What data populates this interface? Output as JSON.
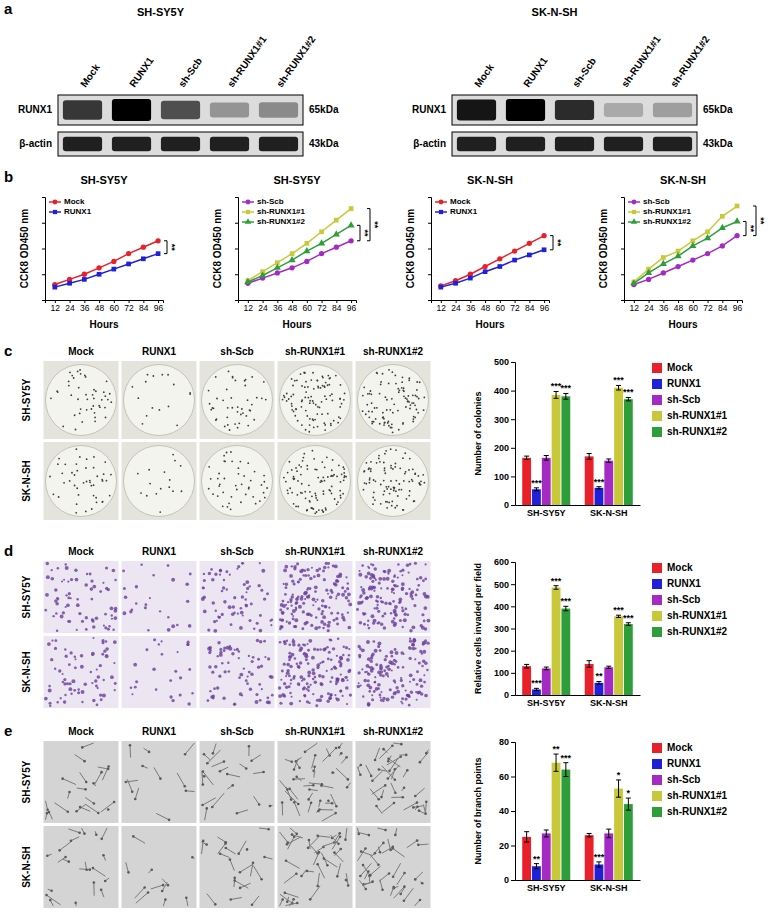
{
  "panel_labels": [
    "a",
    "b",
    "c",
    "d",
    "e"
  ],
  "blots": [
    {
      "title": "SH-SY5Y",
      "lanes": [
        "Mock",
        "RUNX1",
        "sh-Scb",
        "sh-RUNX1#1",
        "sh-RUNX1#2"
      ],
      "rows": [
        {
          "label": "RUNX1",
          "size": "65kDa",
          "intensity": [
            0.75,
            1.0,
            0.65,
            0.3,
            0.35
          ]
        },
        {
          "label": "β-actin",
          "size": "43kDa",
          "intensity": [
            0.85,
            0.85,
            0.85,
            0.85,
            0.85
          ]
        }
      ]
    },
    {
      "title": "SK-N-SH",
      "lanes": [
        "Mock",
        "RUNX1",
        "sh-Scb",
        "sh-RUNX1#1",
        "sh-RUNX1#2"
      ],
      "rows": [
        {
          "label": "RUNX1",
          "size": "65kDa",
          "intensity": [
            0.9,
            1.0,
            0.8,
            0.2,
            0.25
          ]
        },
        {
          "label": "β-actin",
          "size": "43kDa",
          "intensity": [
            0.85,
            0.85,
            0.85,
            0.85,
            0.85
          ]
        }
      ]
    }
  ],
  "image_panels": [
    {
      "columns": [
        "Mock",
        "RUNX1",
        "sh-Scb",
        "sh-RUNX1#1",
        "sh-RUNX1#2"
      ],
      "rows": [
        "SH-SY5Y",
        "SK-N-SH"
      ]
    },
    {
      "columns": [
        "Mock",
        "RUNX1",
        "sh-Scb",
        "sh-RUNX1#1",
        "sh-RUNX1#2"
      ],
      "rows": [
        "SH-SY5Y",
        "SK-N-SH"
      ]
    },
    {
      "columns": [
        "Mock",
        "RUNX1",
        "sh-Scb",
        "sh-RUNX1#1",
        "sh-RUNX1#2"
      ],
      "rows": [
        "SH-SY5Y",
        "SK-N-SH"
      ]
    }
  ],
  "chart_data": [
    {
      "type": "line",
      "title": "SH-SY5Y",
      "x_label": "Hours",
      "y_label": "CCK8 OD450 nm",
      "x": [
        12,
        24,
        36,
        48,
        60,
        72,
        84,
        96
      ],
      "xlim": [
        4,
        100
      ],
      "xticks": [
        12,
        24,
        36,
        48,
        60,
        72,
        84,
        96
      ],
      "ylim": [
        0,
        8
      ],
      "yticks": [
        0,
        2,
        4,
        6,
        8
      ],
      "tick_labels": "x",
      "series": [
        {
          "name": "Mock",
          "color": "#e8202a",
          "marker": "circle",
          "values": [
            1.2,
            1.6,
            2.0,
            2.5,
            3.0,
            3.6,
            4.1,
            4.6
          ]
        },
        {
          "name": "RUNX1",
          "color": "#2020d8",
          "marker": "square",
          "values": [
            1.0,
            1.3,
            1.6,
            2.0,
            2.4,
            2.8,
            3.2,
            3.6
          ]
        }
      ],
      "comparisons": [
        {
          "between": [
            "Mock",
            "RUNX1"
          ],
          "label": "**"
        }
      ]
    },
    {
      "type": "line",
      "title": "SH-SY5Y",
      "x_label": "Hours",
      "y_label": "CCK8 OD450 nm",
      "x": [
        12,
        24,
        36,
        48,
        60,
        72,
        84,
        96
      ],
      "xlim": [
        4,
        100
      ],
      "xticks": [
        12,
        24,
        36,
        48,
        60,
        72,
        84,
        96
      ],
      "ylim": [
        0,
        8
      ],
      "yticks": [
        0,
        2,
        4,
        6,
        8
      ],
      "tick_labels": "x",
      "series": [
        {
          "name": "sh-Scb",
          "color": "#a52ac4",
          "marker": "circle",
          "values": [
            1.3,
            1.7,
            2.1,
            2.5,
            3.0,
            3.6,
            4.1,
            4.6
          ]
        },
        {
          "name": "sh-RUNX1#1",
          "color": "#c8c83a",
          "marker": "square",
          "values": [
            1.5,
            2.2,
            2.9,
            3.6,
            4.4,
            5.3,
            6.2,
            7.1
          ]
        },
        {
          "name": "sh-RUNX1#2",
          "color": "#2e9e3a",
          "marker": "triangle",
          "values": [
            1.4,
            1.9,
            2.5,
            3.1,
            3.8,
            4.4,
            5.1,
            5.8
          ]
        }
      ],
      "comparisons": [
        {
          "between": [
            "sh-Scb",
            "sh-RUNX1#2"
          ],
          "label": "**"
        },
        {
          "between": [
            "sh-Scb",
            "sh-RUNX1#1"
          ],
          "label": "**"
        }
      ]
    },
    {
      "type": "line",
      "title": "SK-N-SH",
      "x_label": "Hours",
      "y_label": "CCK8 OD450 nm",
      "x": [
        12,
        24,
        36,
        48,
        60,
        72,
        84,
        96
      ],
      "xlim": [
        4,
        100
      ],
      "xticks": [
        12,
        24,
        36,
        48,
        60,
        72,
        84,
        96
      ],
      "ylim": [
        0,
        8
      ],
      "yticks": [
        0,
        2,
        4,
        6,
        8
      ],
      "tick_labels": "x",
      "series": [
        {
          "name": "Mock",
          "color": "#e8202a",
          "marker": "circle",
          "values": [
            1.1,
            1.5,
            2.0,
            2.6,
            3.2,
            3.8,
            4.4,
            5.0
          ]
        },
        {
          "name": "RUNX1",
          "color": "#2020d8",
          "marker": "square",
          "values": [
            1.0,
            1.3,
            1.7,
            2.2,
            2.6,
            3.1,
            3.5,
            3.9
          ]
        }
      ],
      "comparisons": [
        {
          "between": [
            "Mock",
            "RUNX1"
          ],
          "label": "**"
        }
      ]
    },
    {
      "type": "line",
      "title": "SK-N-SH",
      "x_label": "Hours",
      "y_label": "CCK8 OD450 nm",
      "x": [
        12,
        24,
        36,
        48,
        60,
        72,
        84,
        96
      ],
      "xlim": [
        4,
        100
      ],
      "xticks": [
        12,
        24,
        36,
        48,
        60,
        72,
        84,
        96
      ],
      "ylim": [
        0,
        8
      ],
      "yticks": [
        0,
        2,
        4,
        6,
        8
      ],
      "tick_labels": "x",
      "series": [
        {
          "name": "sh-Scb",
          "color": "#a52ac4",
          "marker": "circle",
          "values": [
            1.2,
            1.6,
            2.1,
            2.6,
            3.1,
            3.6,
            4.2,
            5.0
          ]
        },
        {
          "name": "sh-RUNX1#1",
          "color": "#c8c83a",
          "marker": "square",
          "values": [
            1.4,
            2.4,
            3.3,
            3.8,
            4.6,
            5.3,
            6.5,
            7.3
          ]
        },
        {
          "name": "sh-RUNX1#2",
          "color": "#2e9e3a",
          "marker": "triangle",
          "values": [
            1.3,
            2.1,
            2.8,
            3.4,
            4.2,
            4.8,
            5.6,
            6.1
          ]
        }
      ],
      "comparisons": [
        {
          "between": [
            "sh-Scb",
            "sh-RUNX1#2"
          ],
          "label": "**"
        },
        {
          "between": [
            "sh-Scb",
            "sh-RUNX1#1"
          ],
          "label": "**"
        }
      ]
    },
    {
      "type": "bar",
      "y_label": "Number of colonies",
      "categories": [
        "SH-SY5Y",
        "SK-N-SH"
      ],
      "ylim": [
        0,
        500
      ],
      "yticks": [
        0,
        100,
        200,
        300,
        400,
        500
      ],
      "legend": "right",
      "series": [
        {
          "name": "Mock",
          "color": "#e8202a",
          "values": [
            165,
            170
          ],
          "errors": [
            6,
            10
          ],
          "significance": [
            null,
            null
          ]
        },
        {
          "name": "RUNX1",
          "color": "#2020d8",
          "values": [
            55,
            60
          ],
          "errors": [
            5,
            4
          ],
          "significance": [
            "***",
            "***"
          ]
        },
        {
          "name": "sh-Scb",
          "color": "#a52ac4",
          "values": [
            165,
            155
          ],
          "errors": [
            8,
            6
          ],
          "significance": [
            null,
            null
          ]
        },
        {
          "name": "sh-RUNX1#1",
          "color": "#c8c83a",
          "values": [
            385,
            410
          ],
          "errors": [
            12,
            8
          ],
          "significance": [
            "***",
            "***"
          ]
        },
        {
          "name": "sh-RUNX1#2",
          "color": "#2e9e3a",
          "values": [
            380,
            370
          ],
          "errors": [
            10,
            6
          ],
          "significance": [
            "***",
            "***"
          ]
        }
      ]
    },
    {
      "type": "bar",
      "y_label": "Relative cells invaded per field",
      "categories": [
        "SH-SY5Y",
        "SK-N-SH"
      ],
      "ylim": [
        0,
        600
      ],
      "yticks": [
        0,
        100,
        200,
        300,
        400,
        500,
        600
      ],
      "legend": "right",
      "series": [
        {
          "name": "Mock",
          "color": "#e8202a",
          "values": [
            130,
            140
          ],
          "errors": [
            8,
            15
          ],
          "significance": [
            null,
            null
          ]
        },
        {
          "name": "RUNX1",
          "color": "#2020d8",
          "values": [
            25,
            55
          ],
          "errors": [
            5,
            6
          ],
          "significance": [
            "***",
            "**"
          ]
        },
        {
          "name": "sh-Scb",
          "color": "#a52ac4",
          "values": [
            120,
            125
          ],
          "errors": [
            6,
            5
          ],
          "significance": [
            null,
            null
          ]
        },
        {
          "name": "sh-RUNX1#1",
          "color": "#c8c83a",
          "values": [
            485,
            355
          ],
          "errors": [
            8,
            5
          ],
          "significance": [
            "***",
            "***"
          ]
        },
        {
          "name": "sh-RUNX1#2",
          "color": "#2e9e3a",
          "values": [
            390,
            320
          ],
          "errors": [
            10,
            6
          ],
          "significance": [
            "***",
            "***"
          ]
        }
      ]
    },
    {
      "type": "bar",
      "y_label": "Number of branch points",
      "categories": [
        "SH-SY5Y",
        "SK-N-SH"
      ],
      "ylim": [
        0,
        80
      ],
      "yticks": [
        0,
        20,
        40,
        60,
        80
      ],
      "legend": "right",
      "series": [
        {
          "name": "Mock",
          "color": "#e8202a",
          "values": [
            25,
            26
          ],
          "errors": [
            3,
            1
          ],
          "significance": [
            null,
            null
          ]
        },
        {
          "name": "RUNX1",
          "color": "#2020d8",
          "values": [
            8,
            9
          ],
          "errors": [
            1.5,
            1.5
          ],
          "significance": [
            "**",
            "***"
          ]
        },
        {
          "name": "sh-Scb",
          "color": "#a52ac4",
          "values": [
            27,
            27
          ],
          "errors": [
            2,
            2.5
          ],
          "significance": [
            null,
            null
          ]
        },
        {
          "name": "sh-RUNX1#1",
          "color": "#c8c83a",
          "values": [
            68,
            53
          ],
          "errors": [
            5,
            5
          ],
          "significance": [
            "**",
            "*"
          ]
        },
        {
          "name": "sh-RUNX1#2",
          "color": "#2e9e3a",
          "values": [
            64,
            44
          ],
          "errors": [
            4,
            3.5
          ],
          "significance": [
            "***",
            "*"
          ]
        }
      ]
    }
  ]
}
